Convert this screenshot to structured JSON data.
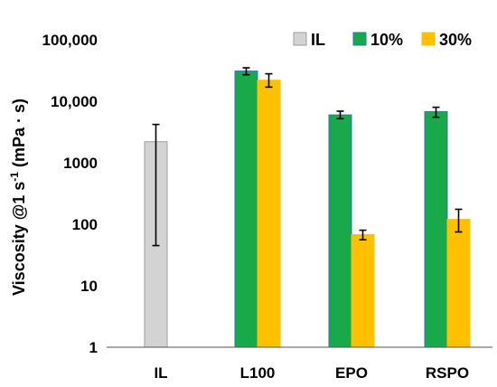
{
  "chart_data": {
    "type": "bar",
    "title": "",
    "xlabel": "",
    "ylabel": {
      "main": "Viscosity @1 s",
      "sup": "-1",
      "tail": " (mPa · s)"
    },
    "yscale": "log",
    "ylim": [
      1,
      100000
    ],
    "yticks": [
      "1",
      "10",
      "100",
      "1000",
      "10,000",
      "100,000"
    ],
    "categories": [
      "IL",
      "L100",
      "EPO",
      "RSPO"
    ],
    "series": [
      {
        "name": "IL",
        "color": "#d3d3d3",
        "stroke": "#9e9e9e",
        "values": [
          2200,
          null,
          null,
          null
        ],
        "err_low": [
          45,
          null,
          null,
          null
        ],
        "err_high": [
          4200,
          null,
          null,
          null
        ]
      },
      {
        "name": "10%",
        "color": "#19a84a",
        "stroke": "#2e75b6",
        "values": [
          null,
          31000,
          6000,
          6800
        ],
        "err_low": [
          null,
          27000,
          5200,
          5500
        ],
        "err_high": [
          null,
          35000,
          6900,
          8000
        ]
      },
      {
        "name": "30%",
        "color": "#ffc000",
        "stroke": "#ffc000",
        "values": [
          null,
          22000,
          68,
          120
        ],
        "err_low": [
          null,
          17000,
          56,
          75
        ],
        "err_high": [
          null,
          28000,
          80,
          175
        ]
      }
    ],
    "legend_position": "top-right",
    "grid": false
  }
}
